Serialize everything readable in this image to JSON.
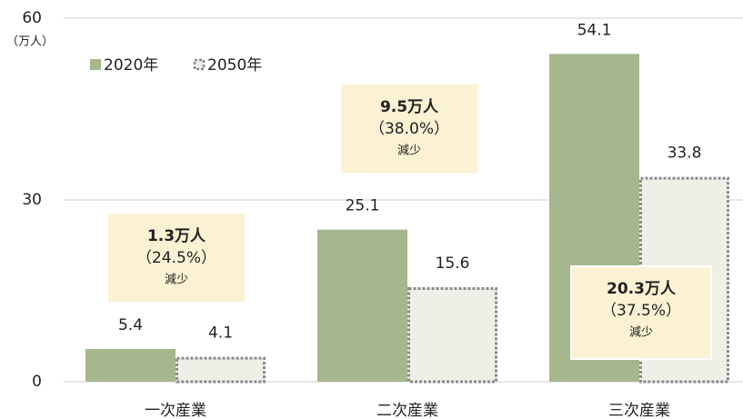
{
  "chart_data": {
    "type": "bar",
    "y_unit": "（万人）",
    "categories": [
      "一次産業",
      "二次産業",
      "三次産業"
    ],
    "series": [
      {
        "name": "2020年",
        "color": "#a6b68d",
        "values": [
          5.4,
          25.1,
          54.1
        ]
      },
      {
        "name": "2050年",
        "color": "#eef0e8",
        "border": "#8a8a8a",
        "values": [
          4.1,
          15.6,
          33.8
        ]
      }
    ],
    "ylim": [
      0,
      60
    ],
    "yticks": [
      0,
      30,
      60
    ],
    "grid": true,
    "annotations": [
      {
        "lines": [
          "1.3万人",
          "（24.5%）",
          "減少"
        ]
      },
      {
        "lines": [
          "9.5万人",
          "（38.0%）",
          "減少"
        ]
      },
      {
        "lines": [
          "20.3万人",
          "（37.5%）",
          "減少"
        ]
      }
    ]
  }
}
